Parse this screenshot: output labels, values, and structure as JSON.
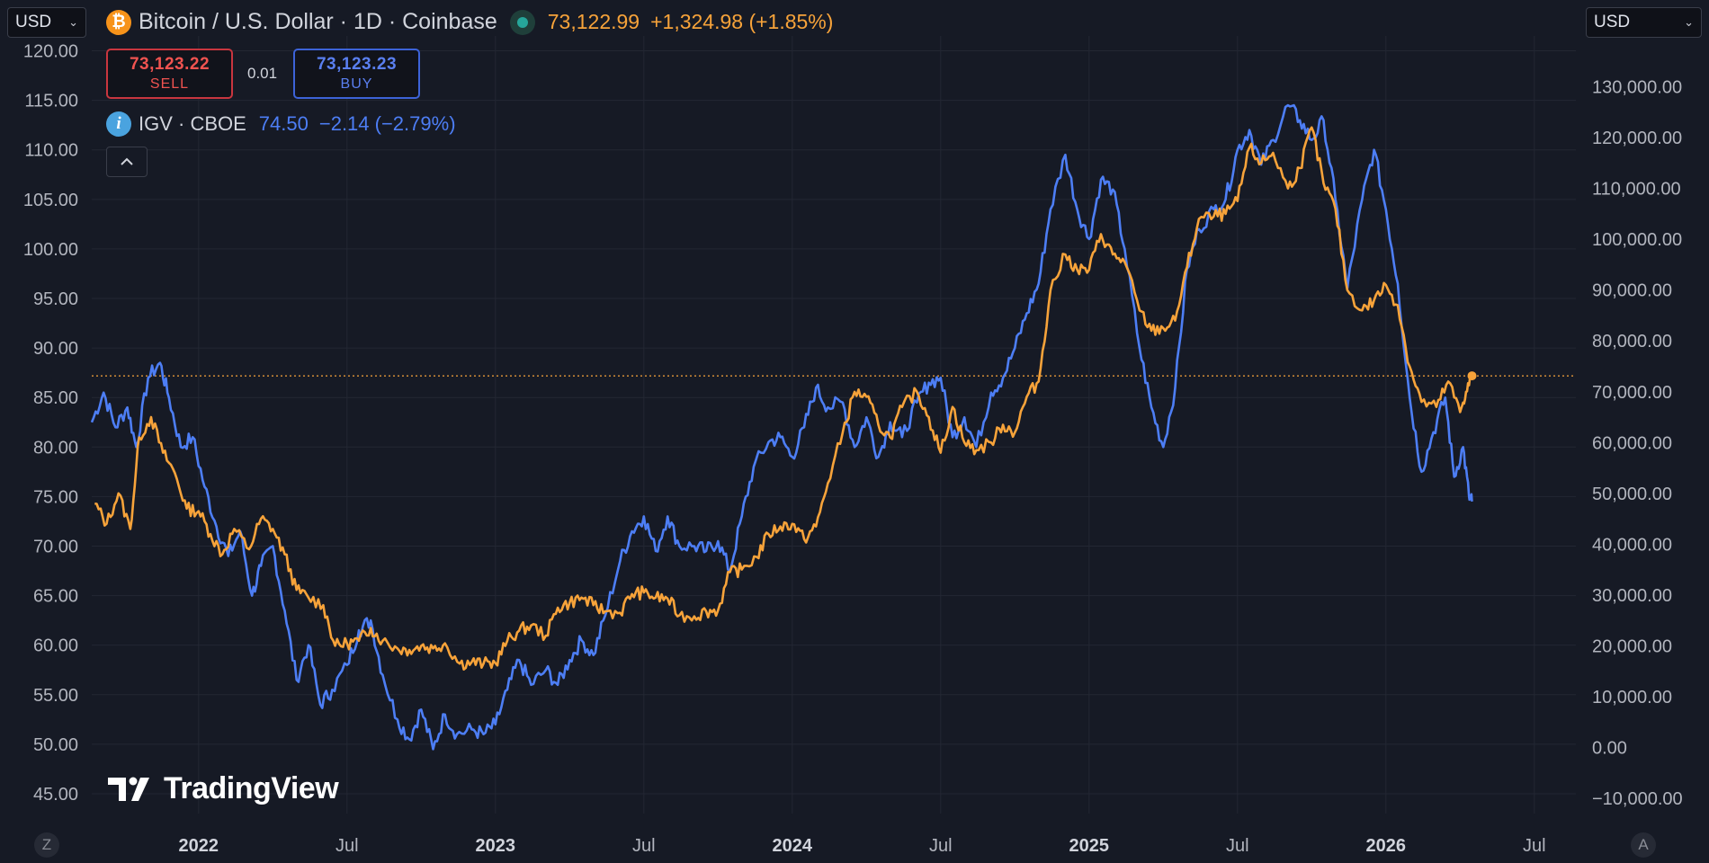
{
  "header": {
    "currency_left": "USD",
    "currency_right": "USD",
    "symbol_title": "Bitcoin / U.S. Dollar · 1D · Coinbase",
    "price": "73,122.99",
    "change": "+1,324.98 (+1.85%)",
    "sell_price": "73,123.22",
    "sell_label": "SELL",
    "buy_price": "73,123.23",
    "buy_label": "BUY",
    "spread": "0.01",
    "compare_symbol": "IGV · CBOE",
    "compare_value": "74.50",
    "compare_change": "−2.14 (−2.79%)",
    "corner_left": "Z",
    "corner_right": "A",
    "logo_text": "TradingView"
  },
  "colors": {
    "btc_line": "#f7a33a",
    "igv_line": "#4d7ef5",
    "background": "#161a25",
    "grid": "#232733"
  },
  "chart_data": {
    "type": "line",
    "title": "Bitcoin / U.S. Dollar · 1D · Coinbase",
    "x_ticks": [
      {
        "label": "2022",
        "t": 2022.0,
        "bold": true
      },
      {
        "label": "Jul",
        "t": 2022.5,
        "bold": false
      },
      {
        "label": "2023",
        "t": 2023.0,
        "bold": true
      },
      {
        "label": "Jul",
        "t": 2023.5,
        "bold": false
      },
      {
        "label": "2024",
        "t": 2024.0,
        "bold": true
      },
      {
        "label": "Jul",
        "t": 2024.5,
        "bold": false
      },
      {
        "label": "2025",
        "t": 2025.0,
        "bold": true
      },
      {
        "label": "Jul",
        "t": 2025.5,
        "bold": false
      },
      {
        "label": "2026",
        "t": 2026.0,
        "bold": true
      },
      {
        "label": "Jul",
        "t": 2026.5,
        "bold": false
      }
    ],
    "x_range": [
      2021.64,
      2026.64
    ],
    "left_axis": {
      "name": "IGV",
      "range": [
        43.0,
        121.5
      ],
      "ticks": [
        "120.00",
        "115.00",
        "110.00",
        "105.00",
        "100.00",
        "95.00",
        "90.00",
        "85.00",
        "80.00",
        "75.00",
        "70.00",
        "65.00",
        "60.00",
        "55.00",
        "50.00",
        "45.00"
      ]
    },
    "right_axis": {
      "name": "BTCUSD",
      "range": [
        -13000,
        140000
      ],
      "ticks": [
        "130,000.00",
        "120,000.00",
        "110,000.00",
        "100,000.00",
        "90,000.00",
        "80,000.00",
        "70,000.00",
        "60,000.00",
        "50,000.00",
        "40,000.00",
        "30,000.00",
        "20,000.00",
        "10,000.00",
        "0.00",
        "−10,000.00"
      ]
    },
    "price_line": 73122.99,
    "series": [
      {
        "name": "BTCUSD",
        "axis": "right",
        "points": [
          [
            2021.65,
            48000
          ],
          [
            2021.69,
            44000
          ],
          [
            2021.73,
            50000
          ],
          [
            2021.77,
            43000
          ],
          [
            2021.8,
            61000
          ],
          [
            2021.84,
            65000
          ],
          [
            2021.88,
            58000
          ],
          [
            2021.92,
            54000
          ],
          [
            2021.96,
            47000
          ],
          [
            2022.0,
            46500
          ],
          [
            2022.04,
            42000
          ],
          [
            2022.08,
            38000
          ],
          [
            2022.12,
            43000
          ],
          [
            2022.17,
            39000
          ],
          [
            2022.21,
            45000
          ],
          [
            2022.25,
            43000
          ],
          [
            2022.29,
            38000
          ],
          [
            2022.33,
            31000
          ],
          [
            2022.37,
            29500
          ],
          [
            2022.42,
            28000
          ],
          [
            2022.46,
            20000
          ],
          [
            2022.5,
            20500
          ],
          [
            2022.54,
            21000
          ],
          [
            2022.58,
            23500
          ],
          [
            2022.62,
            21000
          ],
          [
            2022.67,
            19500
          ],
          [
            2022.71,
            19200
          ],
          [
            2022.75,
            20000
          ],
          [
            2022.79,
            19500
          ],
          [
            2022.83,
            20500
          ],
          [
            2022.88,
            16500
          ],
          [
            2022.92,
            16800
          ],
          [
            2022.96,
            16500
          ],
          [
            2023.0,
            16600
          ],
          [
            2023.04,
            21000
          ],
          [
            2023.08,
            23000
          ],
          [
            2023.12,
            24000
          ],
          [
            2023.17,
            22000
          ],
          [
            2023.21,
            27500
          ],
          [
            2023.25,
            28500
          ],
          [
            2023.29,
            29500
          ],
          [
            2023.33,
            28000
          ],
          [
            2023.37,
            26800
          ],
          [
            2023.42,
            26500
          ],
          [
            2023.46,
            30200
          ],
          [
            2023.5,
            30500
          ],
          [
            2023.54,
            29500
          ],
          [
            2023.58,
            29300
          ],
          [
            2023.62,
            26000
          ],
          [
            2023.67,
            25800
          ],
          [
            2023.71,
            26800
          ],
          [
            2023.75,
            27000
          ],
          [
            2023.79,
            34500
          ],
          [
            2023.83,
            35000
          ],
          [
            2023.88,
            37500
          ],
          [
            2023.92,
            42000
          ],
          [
            2023.96,
            43500
          ],
          [
            2024.0,
            44000
          ],
          [
            2024.04,
            41000
          ],
          [
            2024.08,
            43500
          ],
          [
            2024.12,
            52000
          ],
          [
            2024.17,
            62000
          ],
          [
            2024.21,
            70000
          ],
          [
            2024.25,
            69000
          ],
          [
            2024.29,
            63500
          ],
          [
            2024.33,
            61000
          ],
          [
            2024.37,
            67000
          ],
          [
            2024.42,
            70000
          ],
          [
            2024.46,
            65000
          ],
          [
            2024.5,
            58000
          ],
          [
            2024.54,
            67000
          ],
          [
            2024.58,
            60000
          ],
          [
            2024.62,
            58500
          ],
          [
            2024.67,
            60000
          ],
          [
            2024.71,
            63500
          ],
          [
            2024.75,
            62000
          ],
          [
            2024.79,
            69000
          ],
          [
            2024.83,
            72000
          ],
          [
            2024.87,
            90000
          ],
          [
            2024.92,
            97000
          ],
          [
            2024.96,
            94000
          ],
          [
            2025.0,
            94000
          ],
          [
            2025.04,
            101000
          ],
          [
            2025.08,
            97000
          ],
          [
            2025.12,
            95500
          ],
          [
            2025.17,
            86000
          ],
          [
            2025.21,
            82000
          ],
          [
            2025.25,
            82500
          ],
          [
            2025.29,
            84000
          ],
          [
            2025.33,
            94500
          ],
          [
            2025.37,
            104000
          ],
          [
            2025.42,
            104500
          ],
          [
            2025.46,
            105000
          ],
          [
            2025.5,
            107500
          ],
          [
            2025.54,
            118000
          ],
          [
            2025.58,
            115000
          ],
          [
            2025.62,
            117000
          ],
          [
            2025.67,
            110000
          ],
          [
            2025.71,
            114000
          ],
          [
            2025.75,
            122000
          ],
          [
            2025.79,
            111000
          ],
          [
            2025.83,
            106000
          ],
          [
            2025.87,
            90000
          ],
          [
            2025.92,
            86000
          ],
          [
            2025.96,
            88000
          ],
          [
            2026.0,
            91000
          ],
          [
            2026.04,
            87000
          ],
          [
            2026.08,
            75000
          ],
          [
            2026.12,
            68000
          ],
          [
            2026.17,
            67000
          ],
          [
            2026.21,
            72000
          ],
          [
            2026.25,
            66000
          ],
          [
            2026.27,
            70000
          ],
          [
            2026.29,
            73123
          ]
        ]
      },
      {
        "name": "IGV",
        "axis": "left",
        "points": [
          [
            2021.64,
            82.5
          ],
          [
            2021.68,
            85.5
          ],
          [
            2021.72,
            82.0
          ],
          [
            2021.76,
            84.0
          ],
          [
            2021.79,
            80.0
          ],
          [
            2021.83,
            87.0
          ],
          [
            2021.87,
            88.5
          ],
          [
            2021.9,
            85.0
          ],
          [
            2021.94,
            80.0
          ],
          [
            2021.98,
            81.0
          ],
          [
            2022.02,
            76.0
          ],
          [
            2022.06,
            72.0
          ],
          [
            2022.1,
            69.0
          ],
          [
            2022.14,
            71.5
          ],
          [
            2022.18,
            65.0
          ],
          [
            2022.21,
            68.0
          ],
          [
            2022.25,
            70.0
          ],
          [
            2022.29,
            63.5
          ],
          [
            2022.33,
            56.5
          ],
          [
            2022.37,
            60.0
          ],
          [
            2022.41,
            54.0
          ],
          [
            2022.45,
            55.5
          ],
          [
            2022.5,
            58.0
          ],
          [
            2022.54,
            61.5
          ],
          [
            2022.58,
            62.5
          ],
          [
            2022.62,
            57.0
          ],
          [
            2022.67,
            52.5
          ],
          [
            2022.71,
            50.5
          ],
          [
            2022.75,
            53.5
          ],
          [
            2022.79,
            49.5
          ],
          [
            2022.83,
            53.0
          ],
          [
            2022.87,
            51.0
          ],
          [
            2022.92,
            51.5
          ],
          [
            2022.96,
            51.0
          ],
          [
            2023.0,
            52.0
          ],
          [
            2023.04,
            55.5
          ],
          [
            2023.08,
            58.5
          ],
          [
            2023.12,
            56.0
          ],
          [
            2023.17,
            57.5
          ],
          [
            2023.21,
            56.0
          ],
          [
            2023.25,
            58.5
          ],
          [
            2023.29,
            60.5
          ],
          [
            2023.33,
            59.0
          ],
          [
            2023.37,
            63.0
          ],
          [
            2023.42,
            68.5
          ],
          [
            2023.46,
            71.5
          ],
          [
            2023.5,
            73.0
          ],
          [
            2023.54,
            69.5
          ],
          [
            2023.58,
            73.0
          ],
          [
            2023.62,
            70.0
          ],
          [
            2023.67,
            70.0
          ],
          [
            2023.71,
            69.5
          ],
          [
            2023.75,
            70.5
          ],
          [
            2023.79,
            67.5
          ],
          [
            2023.83,
            73.0
          ],
          [
            2023.87,
            78.0
          ],
          [
            2023.92,
            80.5
          ],
          [
            2023.96,
            81.0
          ],
          [
            2024.0,
            79.0
          ],
          [
            2024.04,
            82.0
          ],
          [
            2024.08,
            86.0
          ],
          [
            2024.12,
            84.0
          ],
          [
            2024.17,
            84.5
          ],
          [
            2024.21,
            80.0
          ],
          [
            2024.25,
            83.0
          ],
          [
            2024.29,
            79.0
          ],
          [
            2024.33,
            82.5
          ],
          [
            2024.37,
            81.0
          ],
          [
            2024.42,
            84.5
          ],
          [
            2024.46,
            86.5
          ],
          [
            2024.5,
            87.0
          ],
          [
            2024.54,
            81.0
          ],
          [
            2024.58,
            83.0
          ],
          [
            2024.62,
            80.0
          ],
          [
            2024.67,
            85.5
          ],
          [
            2024.71,
            87.0
          ],
          [
            2024.75,
            90.0
          ],
          [
            2024.79,
            93.5
          ],
          [
            2024.83,
            96.5
          ],
          [
            2024.87,
            104.0
          ],
          [
            2024.92,
            109.5
          ],
          [
            2024.96,
            104.0
          ],
          [
            2025.0,
            101.0
          ],
          [
            2025.04,
            107.0
          ],
          [
            2025.08,
            106.0
          ],
          [
            2025.12,
            100.0
          ],
          [
            2025.17,
            90.0
          ],
          [
            2025.21,
            84.0
          ],
          [
            2025.25,
            80.0
          ],
          [
            2025.29,
            86.0
          ],
          [
            2025.33,
            98.0
          ],
          [
            2025.37,
            102.0
          ],
          [
            2025.42,
            104.0
          ],
          [
            2025.46,
            105.0
          ],
          [
            2025.5,
            110.0
          ],
          [
            2025.54,
            112.0
          ],
          [
            2025.58,
            108.5
          ],
          [
            2025.62,
            111.0
          ],
          [
            2025.67,
            114.5
          ],
          [
            2025.71,
            113.0
          ],
          [
            2025.75,
            111.0
          ],
          [
            2025.79,
            113.0
          ],
          [
            2025.83,
            105.0
          ],
          [
            2025.87,
            96.0
          ],
          [
            2025.92,
            105.0
          ],
          [
            2025.96,
            110.0
          ],
          [
            2026.0,
            104.0
          ],
          [
            2026.04,
            96.5
          ],
          [
            2026.08,
            85.0
          ],
          [
            2026.12,
            77.5
          ],
          [
            2026.16,
            81.5
          ],
          [
            2026.2,
            85.0
          ],
          [
            2026.23,
            77.0
          ],
          [
            2026.26,
            80.0
          ],
          [
            2026.28,
            75.0
          ],
          [
            2026.29,
            74.5
          ]
        ]
      }
    ]
  }
}
